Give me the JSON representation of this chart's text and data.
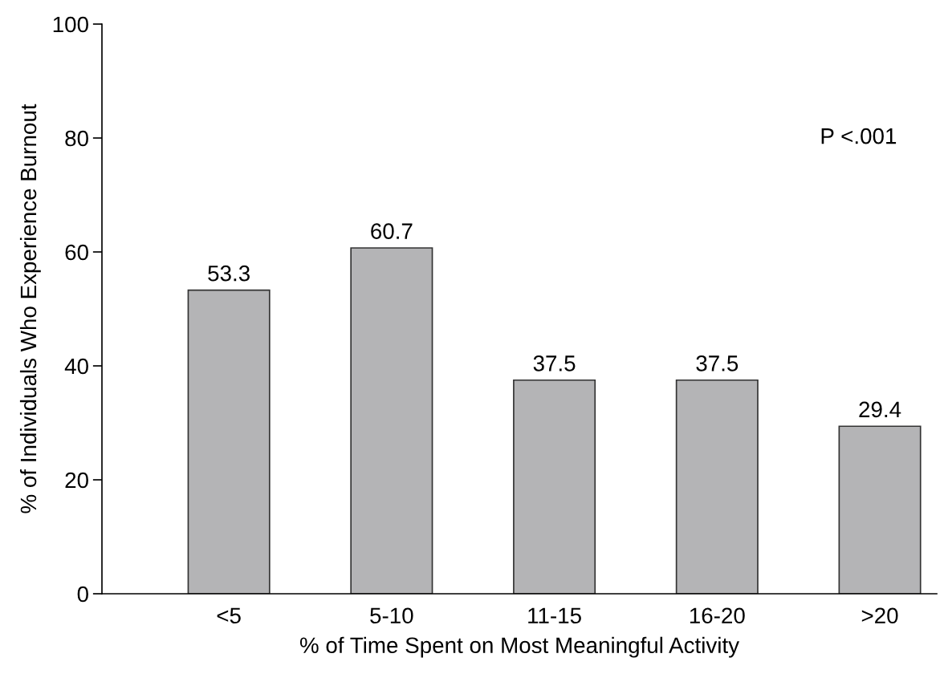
{
  "chart_data": {
    "type": "bar",
    "categories": [
      "<5",
      "5-10",
      "11-15",
      "16-20",
      ">20"
    ],
    "values": [
      53.3,
      60.7,
      37.5,
      37.5,
      29.4
    ],
    "color": "#b4b4b6",
    "xlabel": "% of Time Spent on Most Meaningful Activity",
    "ylabel": "% of Individuals Who Experience Burnout",
    "ylim": [
      0,
      100
    ],
    "yticks": [
      0,
      20,
      40,
      60,
      80,
      100
    ],
    "data_labels": true,
    "grid": false,
    "legend": false,
    "annotations": [
      "P <.001"
    ]
  }
}
